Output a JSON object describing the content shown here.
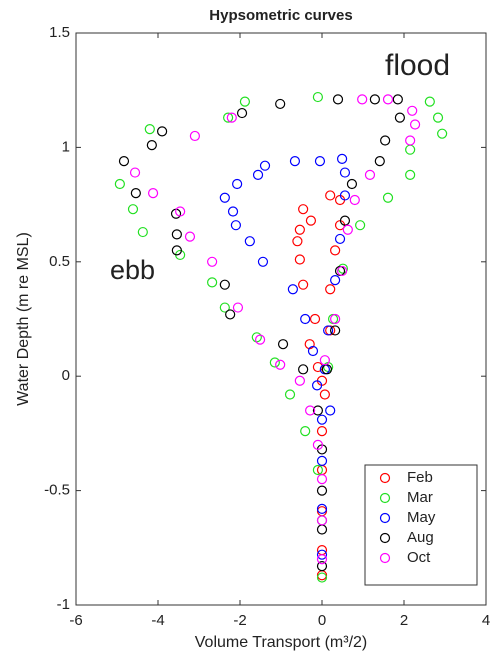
{
  "chart_data": {
    "type": "scatter",
    "title": "Hypsometric curves",
    "x_label": "Volume Transport (m³/2)",
    "y_label": "Water Depth (m re MSL)",
    "annotations": [
      "flood",
      "ebb"
    ],
    "xlim": [
      -6,
      4
    ],
    "xticks": [
      -6,
      -4,
      -2,
      0,
      2,
      4
    ],
    "ylim": [
      -1,
      1.5
    ],
    "yticks": [
      -1,
      -0.5,
      0,
      0.5,
      1,
      1.5
    ],
    "grid": false,
    "legend": "lower right",
    "series": [
      {
        "name": "Feb",
        "color": "#ff0000",
        "x": [
          0.2,
          -0.46,
          -0.27,
          -0.54,
          -0.6,
          -0.54,
          -0.46,
          -0.17,
          -0.3,
          -0.1,
          0.07,
          0,
          0,
          0,
          0,
          0,
          0.44,
          0.44,
          0.32,
          0.2,
          0.2,
          0
        ],
        "values": [
          0.79,
          0.73,
          0.68,
          0.64,
          0.59,
          0.51,
          0.4,
          0.25,
          0.14,
          0.04,
          -0.08,
          -0.24,
          -0.41,
          -0.59,
          -0.76,
          -0.87,
          0.77,
          0.66,
          0.55,
          0.38,
          0.2,
          -0.02
        ]
      },
      {
        "name": "Mar",
        "color": "#22e022",
        "x": [
          -4.93,
          -4.61,
          -4.37,
          -4.2,
          -3.46,
          -2.68,
          -2.37,
          -1.59,
          -1.15,
          -0.78,
          -0.41,
          -0.1,
          0,
          0,
          -2.29,
          -1.88,
          -0.1,
          2.63,
          2.83,
          2.93,
          2.15,
          2.15,
          1.61,
          0.93,
          0.51,
          0.27,
          0.15
        ],
        "values": [
          0.84,
          0.73,
          0.63,
          1.08,
          0.53,
          0.41,
          0.3,
          0.17,
          0.06,
          -0.08,
          -0.24,
          -0.41,
          -0.63,
          -0.88,
          1.13,
          1.2,
          1.22,
          1.2,
          1.13,
          1.06,
          0.99,
          0.88,
          0.78,
          0.66,
          0.47,
          0.25,
          0.04
        ]
      },
      {
        "name": "May",
        "color": "#0000ff",
        "x": [
          0.49,
          0.56,
          -0.05,
          -0.66,
          -1.56,
          -2.07,
          -2.37,
          -2.17,
          -2.1,
          -1.76,
          -1.44,
          -0.71,
          -0.41,
          -0.22,
          -0.12,
          0,
          0,
          0,
          0,
          0.56,
          0.44,
          0.32,
          0.15,
          0.07,
          0.2,
          -1.39
        ],
        "values": [
          0.95,
          0.89,
          0.94,
          0.94,
          0.88,
          0.84,
          0.78,
          0.72,
          0.66,
          0.59,
          0.5,
          0.38,
          0.25,
          0.11,
          -0.04,
          -0.19,
          -0.37,
          -0.58,
          -0.78,
          0.79,
          0.6,
          0.42,
          0.2,
          0.03,
          -0.15,
          0.92
        ]
      },
      {
        "name": "Aug",
        "color": "#000000",
        "x": [
          -4.83,
          -4.54,
          -4.15,
          -3.9,
          -3.56,
          -3.54,
          -3.54,
          -2.37,
          -2.24,
          -0.95,
          -0.46,
          -0.1,
          0,
          0,
          0,
          0,
          -1.95,
          -1.02,
          0.39,
          1.29,
          1.85,
          1.9,
          1.54,
          1.41,
          0.73,
          0.56,
          0.44,
          0.32,
          0.12
        ],
        "values": [
          0.94,
          0.8,
          1.01,
          1.07,
          0.71,
          0.62,
          0.55,
          0.4,
          0.27,
          0.14,
          0.03,
          -0.15,
          -0.32,
          -0.5,
          -0.67,
          -0.83,
          1.15,
          1.19,
          1.21,
          1.21,
          1.21,
          1.13,
          1.03,
          0.94,
          0.84,
          0.68,
          0.46,
          0.2,
          0.03
        ]
      },
      {
        "name": "Oct",
        "color": "#ff00ff",
        "x": [
          -4.56,
          -4.12,
          -3.46,
          -3.22,
          -2.68,
          -2.05,
          -1.51,
          -1.02,
          -0.54,
          -0.29,
          -0.1,
          0,
          0,
          0,
          -2.2,
          -3.1,
          0.98,
          1.61,
          2.2,
          2.27,
          2.15,
          1.17,
          0.8,
          0.63,
          0.49,
          0.32,
          0.07
        ],
        "values": [
          0.89,
          0.8,
          0.72,
          0.61,
          0.5,
          0.3,
          0.16,
          0.05,
          -0.02,
          -0.15,
          -0.3,
          -0.45,
          -0.63,
          -0.8,
          1.13,
          1.05,
          1.21,
          1.21,
          1.16,
          1.1,
          1.03,
          0.88,
          0.77,
          0.64,
          0.46,
          0.25,
          0.07
        ]
      }
    ]
  }
}
